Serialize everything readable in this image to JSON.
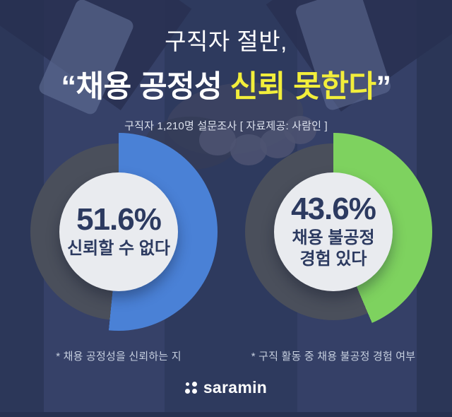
{
  "title": {
    "line1": "구직자 절반,",
    "line2_open_quote": "“",
    "line2_white": "채용 공정성 ",
    "line2_yellow": "신뢰 못한다",
    "line2_close_quote": "”",
    "subtitle": "구직자 1,210명 설문조사 [ 자료제공: 사람인 ]"
  },
  "chart_data": [
    {
      "type": "donut",
      "value_pct": 51.6,
      "remainder_pct": 48.4,
      "value_label": "51.6%",
      "center_label": "신뢰할 수 없다",
      "arc_color": "#4a81d6",
      "ring_color": "#4a4f5b",
      "caption": "* 채용 공정성을 신뢰하는 지",
      "arc_start": "top",
      "arc_direction": "clockwise"
    },
    {
      "type": "donut",
      "value_pct": 43.6,
      "remainder_pct": 56.4,
      "value_label": "43.6%",
      "center_label": "채용 불공정\n경험 있다",
      "arc_color": "#7ed25f",
      "ring_color": "#4a4f5b",
      "caption": "* 구직 활동 중 채용 불공정 경험 여부",
      "arc_start": "top",
      "arc_direction": "clockwise"
    }
  ],
  "footer": {
    "logo_text": "saramin"
  },
  "colors": {
    "background_navy": "#2f3b60",
    "accent_yellow": "#f2ee3b",
    "accent_blue": "#4a81d6",
    "accent_green": "#7ed25f",
    "donut_remainder_gray": "#4a4f5b",
    "inner_circle": "#e9ebef",
    "dark_navy_text": "#2c3a60"
  }
}
